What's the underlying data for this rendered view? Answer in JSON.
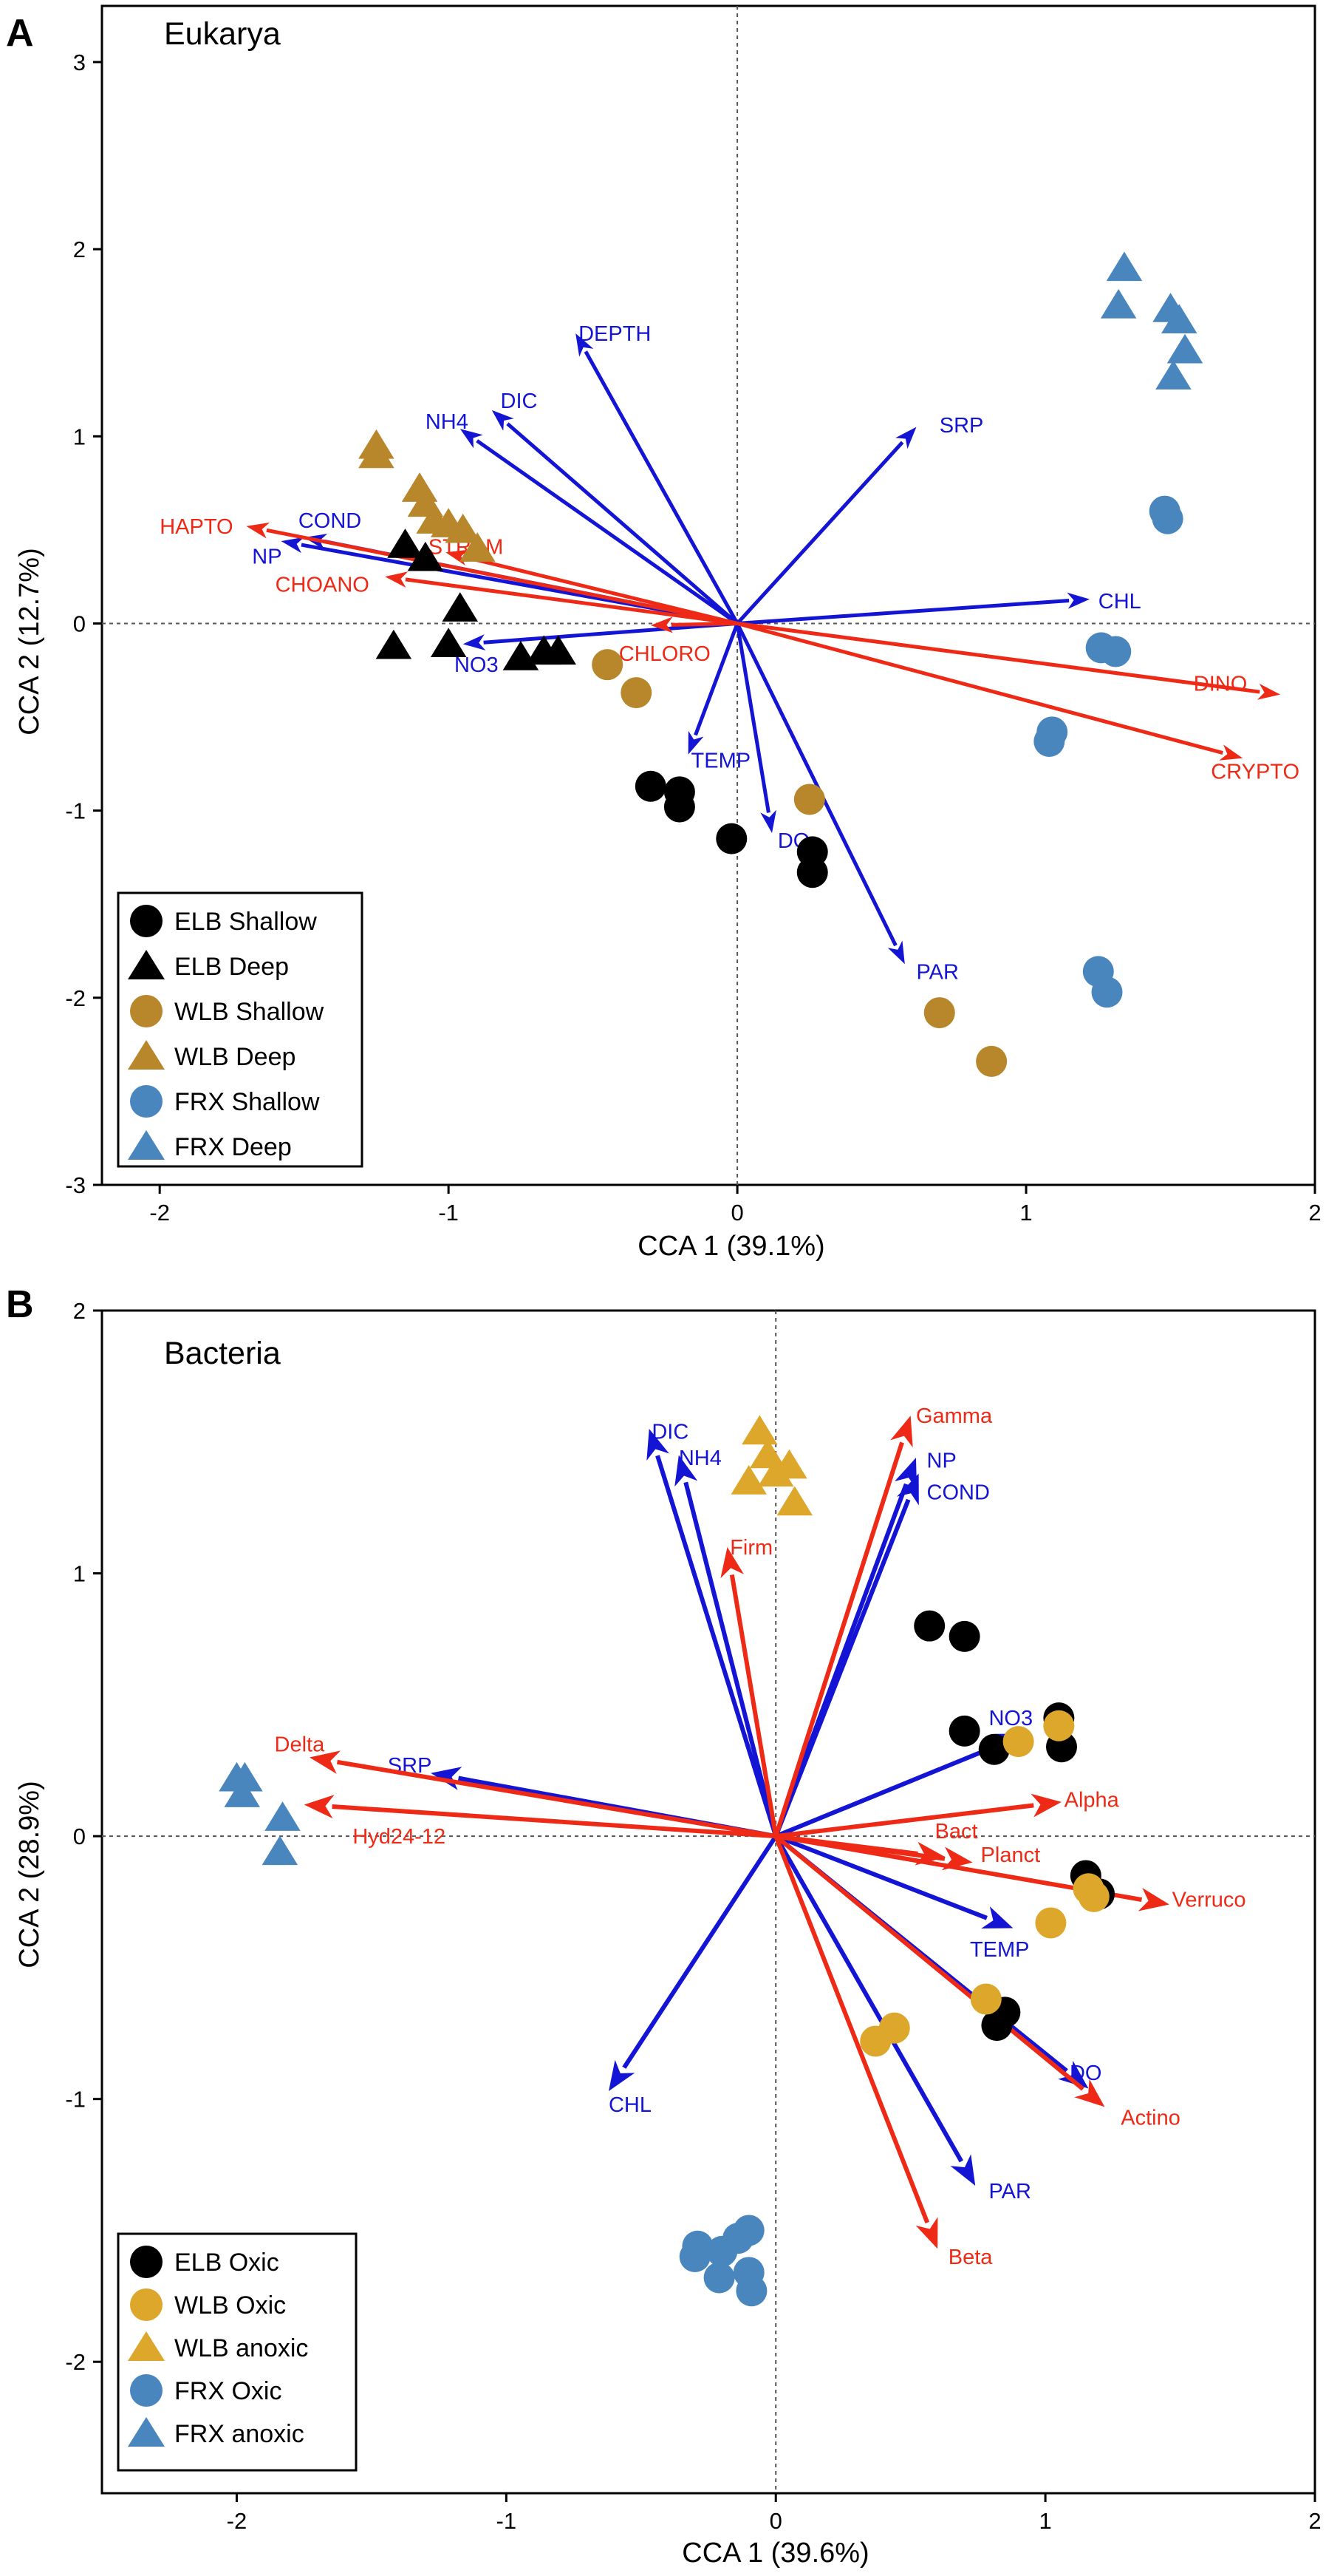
{
  "chart_data": [
    {
      "panel_label": "A",
      "type": "scatter",
      "title": "Eukarya",
      "xlabel": "CCA 1 (39.1%)",
      "ylabel": "CCA 2 (12.7%)",
      "xlim": [
        -2.2,
        2
      ],
      "ylim": [
        -3,
        3.3
      ],
      "x_ticks": [
        -2,
        -1,
        0,
        1,
        2
      ],
      "y_ticks": [
        -3,
        -2,
        -1,
        0,
        1,
        2,
        3
      ],
      "legend_position": "bottom-left",
      "colors": {
        "black": "#000000",
        "gold": "#B8862B",
        "blue": "#4A86BE",
        "env_arrow": "#1414D4",
        "taxa_arrow": "#EE2A16"
      },
      "legend": [
        {
          "label": "ELB Shallow",
          "shape": "circle",
          "color": "#000000"
        },
        {
          "label": "ELB Deep",
          "shape": "triangle",
          "color": "#000000"
        },
        {
          "label": "WLB Shallow",
          "shape": "circle",
          "color": "#B8862B"
        },
        {
          "label": "WLB Deep",
          "shape": "triangle",
          "color": "#B8862B"
        },
        {
          "label": "FRX Shallow",
          "shape": "circle",
          "color": "#4A86BE"
        },
        {
          "label": "FRX Deep",
          "shape": "triangle",
          "color": "#4A86BE"
        }
      ],
      "series": [
        {
          "name": "ELB Shallow",
          "shape": "circle",
          "color": "#000000",
          "points": [
            [
              -0.3,
              -0.87
            ],
            [
              -0.2,
              -0.9
            ],
            [
              -0.2,
              -0.98
            ],
            [
              -0.02,
              -1.15
            ],
            [
              0.26,
              -1.22
            ],
            [
              0.26,
              -1.33
            ]
          ]
        },
        {
          "name": "ELB Deep",
          "shape": "triangle",
          "color": "#000000",
          "points": [
            [
              -1.15,
              0.42
            ],
            [
              -1.08,
              0.35
            ],
            [
              -0.96,
              0.08
            ],
            [
              -1.19,
              -0.12
            ],
            [
              -1.0,
              -0.11
            ],
            [
              -0.75,
              -0.18
            ],
            [
              -0.67,
              -0.15
            ],
            [
              -0.62,
              -0.15
            ]
          ]
        },
        {
          "name": "WLB Shallow",
          "shape": "circle",
          "color": "#B8862B",
          "points": [
            [
              -0.45,
              -0.22
            ],
            [
              -0.35,
              -0.37
            ],
            [
              0.25,
              -0.94
            ],
            [
              0.7,
              -2.08
            ],
            [
              0.88,
              -2.34
            ]
          ]
        },
        {
          "name": "WLB Deep",
          "shape": "triangle",
          "color": "#B8862B",
          "points": [
            [
              -1.25,
              0.95
            ],
            [
              -1.25,
              0.9
            ],
            [
              -1.1,
              0.72
            ],
            [
              -1.08,
              0.64
            ],
            [
              -1.05,
              0.55
            ],
            [
              -1.0,
              0.53
            ],
            [
              -0.95,
              0.5
            ],
            [
              -0.9,
              0.4
            ]
          ]
        },
        {
          "name": "FRX Shallow",
          "shape": "circle",
          "color": "#4A86BE",
          "points": [
            [
              1.48,
              0.6
            ],
            [
              1.49,
              0.56
            ],
            [
              1.26,
              -0.13
            ],
            [
              1.31,
              -0.15
            ],
            [
              1.09,
              -0.58
            ],
            [
              1.08,
              -0.63
            ],
            [
              1.25,
              -1.86
            ],
            [
              1.28,
              -1.97
            ]
          ]
        },
        {
          "name": "FRX Deep",
          "shape": "triangle",
          "color": "#4A86BE",
          "points": [
            [
              1.34,
              1.9
            ],
            [
              1.32,
              1.7
            ],
            [
              1.5,
              1.68
            ],
            [
              1.53,
              1.62
            ],
            [
              1.55,
              1.46
            ],
            [
              1.51,
              1.32
            ]
          ]
        }
      ],
      "arrows": [
        {
          "label": "DEPTH",
          "group": "environment",
          "color": "#1414D4",
          "x": -0.56,
          "y": 1.55,
          "label_x": -0.55,
          "label_y": 1.55
        },
        {
          "label": "NH4",
          "group": "environment",
          "color": "#1414D4",
          "x": -0.96,
          "y": 1.04,
          "label_x": -1.08,
          "label_y": 1.08
        },
        {
          "label": "DIC",
          "group": "environment",
          "color": "#1414D4",
          "x": -0.85,
          "y": 1.14,
          "label_x": -0.82,
          "label_y": 1.19
        },
        {
          "label": "SRP",
          "group": "environment",
          "color": "#1414D4",
          "x": 0.62,
          "y": 1.05,
          "label_x": 0.7,
          "label_y": 1.06
        },
        {
          "label": "CHL",
          "group": "environment",
          "color": "#1414D4",
          "x": 1.22,
          "y": 0.13,
          "label_x": 1.25,
          "label_y": 0.12
        },
        {
          "label": "COND",
          "group": "environment",
          "color": "#1414D4",
          "x": -1.5,
          "y": 0.46,
          "label_x": -1.52,
          "label_y": 0.55
        },
        {
          "label": "NP",
          "group": "environment",
          "color": "#1414D4",
          "x": -1.58,
          "y": 0.44,
          "label_x": -1.68,
          "label_y": 0.36
        },
        {
          "label": "NO3",
          "group": "environment",
          "color": "#1414D4",
          "x": -0.95,
          "y": -0.11,
          "label_x": -0.98,
          "label_y": -0.22
        },
        {
          "label": "TEMP",
          "group": "environment",
          "color": "#1414D4",
          "x": -0.17,
          "y": -0.7,
          "label_x": -0.16,
          "label_y": -0.73
        },
        {
          "label": "DO",
          "group": "environment",
          "color": "#1414D4",
          "x": 0.12,
          "y": -1.12,
          "label_x": 0.14,
          "label_y": -1.16
        },
        {
          "label": "PAR",
          "group": "environment",
          "color": "#1414D4",
          "x": 0.58,
          "y": -1.82,
          "label_x": 0.62,
          "label_y": -1.86
        },
        {
          "label": "HAPTO",
          "group": "taxa",
          "color": "#EE2A16",
          "x": -1.7,
          "y": 0.52,
          "label_x": -2.0,
          "label_y": 0.52
        },
        {
          "label": "STRAM",
          "group": "taxa",
          "color": "#EE2A16",
          "x": -1.01,
          "y": 0.38,
          "label_x": -1.07,
          "label_y": 0.41
        },
        {
          "label": "CHOANO",
          "group": "taxa",
          "color": "#EE2A16",
          "x": -1.22,
          "y": 0.25,
          "label_x": -1.6,
          "label_y": 0.21
        },
        {
          "label": "CHLORO",
          "group": "taxa",
          "color": "#EE2A16",
          "x": -0.3,
          "y": -0.01,
          "label_x": -0.41,
          "label_y": -0.16
        },
        {
          "label": "DINO",
          "group": "taxa",
          "color": "#EE2A16",
          "x": 1.88,
          "y": -0.38,
          "label_x": 1.58,
          "label_y": -0.32
        },
        {
          "label": "CRYPTO",
          "group": "taxa",
          "color": "#EE2A16",
          "x": 1.75,
          "y": -0.72,
          "label_x": 1.64,
          "label_y": -0.79
        }
      ]
    },
    {
      "panel_label": "B",
      "type": "scatter",
      "title": "Bacteria",
      "xlabel": "CCA 1 (39.6%)",
      "ylabel": "CCA 2 (28.9%)",
      "xlim": [
        -2.5,
        2
      ],
      "ylim": [
        -2.5,
        2
      ],
      "x_ticks": [
        -2,
        -1,
        0,
        1,
        2
      ],
      "y_ticks": [
        -2,
        -1,
        0,
        1,
        2
      ],
      "legend_position": "bottom-left",
      "colors": {
        "black": "#000000",
        "gold": "#DCA72A",
        "blue": "#4A86BE",
        "env_arrow": "#1414D4",
        "taxa_arrow": "#EE2A16"
      },
      "legend": [
        {
          "label": "ELB Oxic",
          "shape": "circle",
          "color": "#000000"
        },
        {
          "label": "WLB Oxic",
          "shape": "circle",
          "color": "#DCA72A"
        },
        {
          "label": "WLB anoxic",
          "shape": "triangle",
          "color": "#DCA72A"
        },
        {
          "label": "FRX Oxic",
          "shape": "circle",
          "color": "#4A86BE"
        },
        {
          "label": "FRX anoxic",
          "shape": "triangle",
          "color": "#4A86BE"
        }
      ],
      "series": [
        {
          "name": "ELB Oxic",
          "shape": "circle",
          "color": "#000000",
          "points": [
            [
              0.57,
              0.8
            ],
            [
              0.7,
              0.76
            ],
            [
              0.7,
              0.4
            ],
            [
              0.81,
              0.33
            ],
            [
              1.05,
              0.45
            ],
            [
              1.06,
              0.34
            ],
            [
              1.15,
              -0.15
            ],
            [
              1.2,
              -0.22
            ],
            [
              0.85,
              -0.67
            ],
            [
              0.82,
              -0.72
            ]
          ]
        },
        {
          "name": "WLB Oxic",
          "shape": "circle",
          "color": "#DCA72A",
          "points": [
            [
              0.9,
              0.36
            ],
            [
              1.05,
              0.42
            ],
            [
              1.16,
              -0.2
            ],
            [
              1.18,
              -0.23
            ],
            [
              1.02,
              -0.33
            ],
            [
              0.78,
              -0.62
            ],
            [
              0.44,
              -0.73
            ],
            [
              0.37,
              -0.78
            ]
          ]
        },
        {
          "name": "WLB anoxic",
          "shape": "triangle",
          "color": "#DCA72A",
          "points": [
            [
              -0.06,
              1.54
            ],
            [
              -0.03,
              1.45
            ],
            [
              0.05,
              1.41
            ],
            [
              -0.1,
              1.35
            ],
            [
              0.0,
              1.38
            ],
            [
              0.07,
              1.27
            ]
          ]
        },
        {
          "name": "FRX Oxic",
          "shape": "circle",
          "color": "#4A86BE",
          "points": [
            [
              -0.29,
              -1.56
            ],
            [
              -0.2,
              -1.58
            ],
            [
              -0.14,
              -1.53
            ],
            [
              -0.1,
              -1.5
            ],
            [
              -0.3,
              -1.6
            ],
            [
              -0.21,
              -1.68
            ],
            [
              -0.1,
              -1.66
            ],
            [
              -0.09,
              -1.73
            ]
          ]
        },
        {
          "name": "FRX anoxic",
          "shape": "triangle",
          "color": "#4A86BE",
          "points": [
            [
              -2.0,
              0.22
            ],
            [
              -1.97,
              0.22
            ],
            [
              -1.98,
              0.16
            ],
            [
              -1.83,
              0.07
            ],
            [
              -1.84,
              -0.06
            ]
          ]
        }
      ],
      "arrows": [
        {
          "label": "DIC",
          "group": "environment",
          "color": "#1414D4",
          "x": -0.47,
          "y": 1.55,
          "label_x": -0.46,
          "label_y": 1.54
        },
        {
          "label": "NH4",
          "group": "environment",
          "color": "#1414D4",
          "x": -0.36,
          "y": 1.45,
          "label_x": -0.36,
          "label_y": 1.44
        },
        {
          "label": "NP",
          "group": "environment",
          "color": "#1414D4",
          "x": 0.52,
          "y": 1.44,
          "label_x": 0.56,
          "label_y": 1.43
        },
        {
          "label": "COND",
          "group": "environment",
          "color": "#1414D4",
          "x": 0.53,
          "y": 1.38,
          "label_x": 0.56,
          "label_y": 1.31
        },
        {
          "label": "SRP",
          "group": "environment",
          "color": "#1414D4",
          "x": -1.28,
          "y": 0.24,
          "label_x": -1.44,
          "label_y": 0.27
        },
        {
          "label": "NO3",
          "group": "environment",
          "color": "#1414D4",
          "x": 0.93,
          "y": 0.39,
          "label_x": 0.79,
          "label_y": 0.45
        },
        {
          "label": "TEMP",
          "group": "environment",
          "color": "#1414D4",
          "x": 0.88,
          "y": -0.35,
          "label_x": 0.72,
          "label_y": -0.43
        },
        {
          "label": "CHL",
          "group": "environment",
          "color": "#1414D4",
          "x": -0.62,
          "y": -0.97,
          "label_x": -0.62,
          "label_y": -1.02
        },
        {
          "label": "DO",
          "group": "environment",
          "color": "#1414D4",
          "x": 1.16,
          "y": -0.96,
          "label_x": 1.09,
          "label_y": -0.9
        },
        {
          "label": "PAR",
          "group": "environment",
          "color": "#1414D4",
          "x": 0.74,
          "y": -1.33,
          "label_x": 0.79,
          "label_y": -1.35
        },
        {
          "label": "Gamma",
          "group": "taxa",
          "color": "#EE2A16",
          "x": 0.5,
          "y": 1.6,
          "label_x": 0.52,
          "label_y": 1.6
        },
        {
          "label": "Firm",
          "group": "taxa",
          "color": "#EE2A16",
          "x": -0.18,
          "y": 1.1,
          "label_x": -0.17,
          "label_y": 1.1
        },
        {
          "label": "Delta",
          "group": "taxa",
          "color": "#EE2A16",
          "x": -1.73,
          "y": 0.3,
          "label_x": -1.86,
          "label_y": 0.35
        },
        {
          "label": "Hyd24-12",
          "group": "taxa",
          "color": "#EE2A16",
          "x": -1.75,
          "y": 0.12,
          "label_x": -1.57,
          "label_y": 0.0
        },
        {
          "label": "Alpha",
          "group": "taxa",
          "color": "#EE2A16",
          "x": 1.06,
          "y": 0.13,
          "label_x": 1.07,
          "label_y": 0.14
        },
        {
          "label": "Bact",
          "group": "taxa",
          "color": "#EE2A16",
          "x": 0.63,
          "y": -0.08,
          "label_x": 0.59,
          "label_y": 0.02
        },
        {
          "label": "Planct",
          "group": "taxa",
          "color": "#EE2A16",
          "x": 0.73,
          "y": -0.1,
          "label_x": 0.76,
          "label_y": -0.07
        },
        {
          "label": "Verruco",
          "group": "taxa",
          "color": "#EE2A16",
          "x": 1.46,
          "y": -0.26,
          "label_x": 1.47,
          "label_y": -0.24
        },
        {
          "label": "Actino",
          "group": "taxa",
          "color": "#EE2A16",
          "x": 1.22,
          "y": -1.03,
          "label_x": 1.28,
          "label_y": -1.07
        },
        {
          "label": "Beta",
          "group": "taxa",
          "color": "#EE2A16",
          "x": 0.6,
          "y": -1.57,
          "label_x": 0.64,
          "label_y": -1.6
        }
      ]
    }
  ]
}
